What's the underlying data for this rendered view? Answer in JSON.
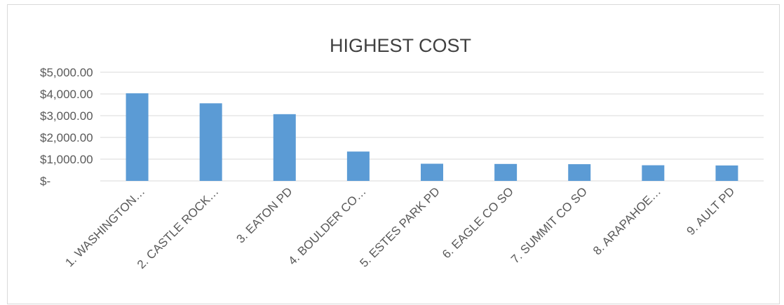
{
  "chart_data": {
    "type": "bar",
    "title": "HIGHEST COST",
    "xlabel": "",
    "ylabel": "",
    "ylim": [
      0,
      5000
    ],
    "y_ticks": [
      {
        "value": 0,
        "label": "$-"
      },
      {
        "value": 1000,
        "label": "$1,000.00"
      },
      {
        "value": 2000,
        "label": "$2,000.00"
      },
      {
        "value": 3000,
        "label": "$3,000.00"
      },
      {
        "value": 4000,
        "label": "$4,000.00"
      },
      {
        "value": 5000,
        "label": "$5,000.00"
      }
    ],
    "categories": [
      "1.  WASHINGTON…",
      "2.  CASTLE ROCK…",
      "3.  EATON PD",
      "4.  BOULDER CO…",
      "5.  ESTES PARK PD",
      "6.  EAGLE CO SO",
      "7.  SUMMIT CO SO",
      "8.  ARAPAHOE…",
      "9.  AULT PD"
    ],
    "values": [
      4030,
      3570,
      3070,
      1350,
      790,
      780,
      770,
      720,
      710
    ],
    "grid": true,
    "legend": "none",
    "colors": {
      "bar": "#5b9bd5",
      "grid": "#d9d9d9",
      "text": "#595959",
      "title": "#404040"
    }
  }
}
